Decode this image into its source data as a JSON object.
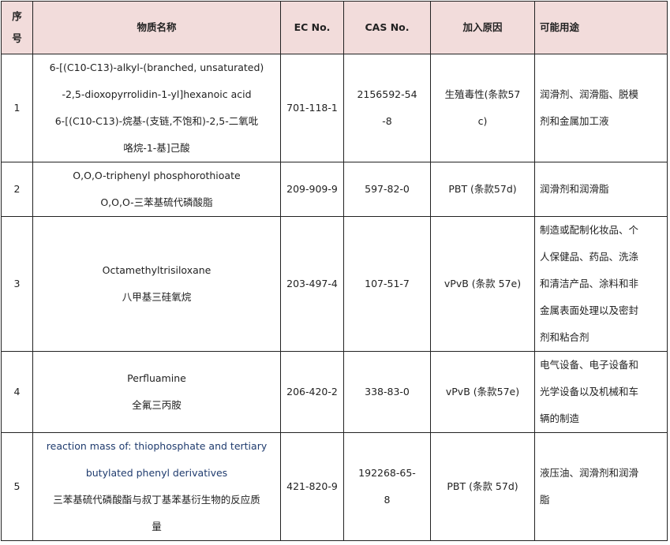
{
  "headers": {
    "no": "序\n号",
    "name": "物质名称",
    "ec": "EC No.",
    "cas": "CAS No.",
    "reason": "加入原因",
    "use": "可能用途"
  },
  "rows": [
    {
      "no": "1",
      "name": [
        "6-[(C10-C13)-alkyl-(branched, unsaturated)",
        "-2,5-dioxopyrrolidin-1-yl]hexanoic acid",
        "6-[(C10-C13)-烷基-(支链,不饱和)-2,5-二氧吡",
        "咯烷-1-基]己酸"
      ],
      "ec": "701-118-1",
      "cas": [
        "2156592-54",
        "-8"
      ],
      "reason": [
        "生殖毒性(条款57",
        "c)"
      ],
      "use": [
        "润滑剂、润滑脂、脱模",
        "剂和金属加工液"
      ]
    },
    {
      "no": "2",
      "name": [
        "O,O,O-triphenyl phosphorothioate",
        "O,O,O-三苯基硫代磷酸脂"
      ],
      "ec": "209-909-9",
      "cas": [
        "597-82-0"
      ],
      "reason": [
        "PBT (条款57d)"
      ],
      "use": [
        "润滑剂和润滑脂"
      ]
    },
    {
      "no": "3",
      "name": [
        "Octamethyltrisiloxane",
        "八甲基三硅氧烷"
      ],
      "ec": "203-497-4",
      "cas": [
        "107-51-7"
      ],
      "reason": [
        "vPvB (条款 57e)"
      ],
      "use": [
        "制造或配制化妆品、个",
        "人保健品、药品、洗涤",
        "和清洁产品、涂料和非",
        "金属表面处理以及密封",
        "剂和粘合剂"
      ]
    },
    {
      "no": "4",
      "name": [
        "Perfluamine",
        "全氟三丙胺"
      ],
      "ec": "206-420-2",
      "cas": [
        "338-83-0"
      ],
      "reason": [
        "vPvB (条款57e)"
      ],
      "use": [
        "电气设备、电子设备和",
        "光学设备以及机械和车",
        "辆的制造"
      ]
    },
    {
      "no": "5",
      "name": [
        "reaction mass of: thiophosphate and tertiary",
        "butylated phenyl derivatives",
        "三苯基硫代磷酸酯与叔丁基苯基衍生物的反应质",
        "量"
      ],
      "ec": "421-820-9",
      "cas": [
        "192268-65-",
        "8"
      ],
      "reason": [
        "PBT (条款 57d)"
      ],
      "use": [
        "液压油、润滑剂和润滑",
        "脂"
      ]
    }
  ]
}
